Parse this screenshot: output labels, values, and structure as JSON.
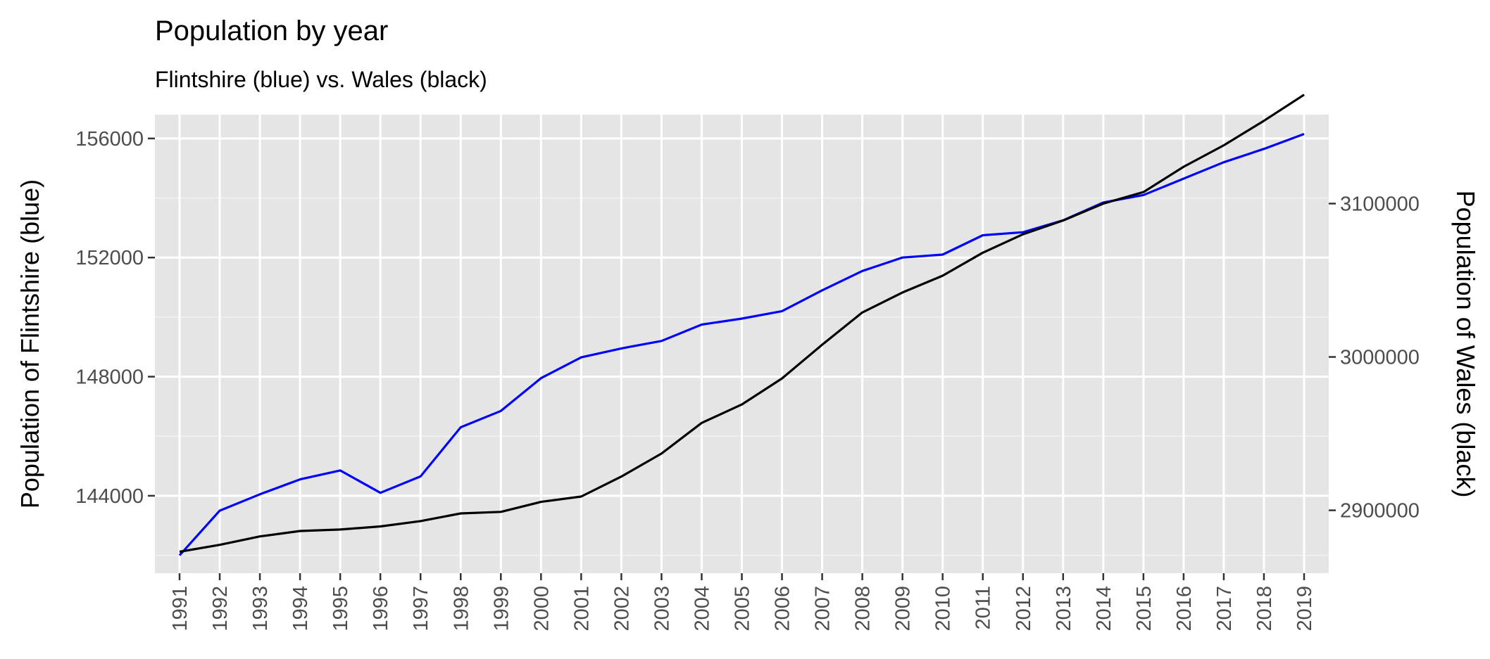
{
  "chart_data": {
    "type": "line",
    "title": "Population by year",
    "subtitle": "Flintshire (blue) vs. Wales (black)",
    "ylabel": "Population of Flintshire  (blue)",
    "y2label": "Population of Wales (black)",
    "x": [
      1991,
      1992,
      1993,
      1994,
      1995,
      1996,
      1997,
      1998,
      1999,
      2000,
      2001,
      2002,
      2003,
      2004,
      2005,
      2006,
      2007,
      2008,
      2009,
      2010,
      2011,
      2012,
      2013,
      2014,
      2015,
      2016,
      2017,
      2018,
      2019
    ],
    "x_tick_labels": [
      "1991",
      "1992",
      "1993",
      "1994",
      "1995",
      "1996",
      "1997",
      "1998",
      "1999",
      "2000",
      "2001",
      "2002",
      "2003",
      "2004",
      "2005",
      "2006",
      "2007",
      "2008",
      "2009",
      "2010",
      "2011",
      "2012",
      "2013",
      "2014",
      "2015",
      "2016",
      "2017",
      "2018",
      "2019"
    ],
    "ylim": [
      141400,
      156800
    ],
    "y_ticks": [
      144000,
      148000,
      152000,
      156000
    ],
    "y_tick_labels": [
      "144000",
      "148000",
      "152000",
      "156000"
    ],
    "y2lim": [
      2859000,
      3158000
    ],
    "y2_ticks": [
      2900000,
      3000000,
      3100000
    ],
    "y2_tick_labels": [
      "2900000",
      "3000000",
      "3100000"
    ],
    "grid": true,
    "series": [
      {
        "name": "Flintshire (blue)",
        "axis": "left",
        "color": "#0000ff",
        "values": [
          142000,
          143500,
          144050,
          144550,
          144850,
          144100,
          144650,
          146300,
          146850,
          147950,
          148650,
          148950,
          149200,
          149750,
          149950,
          150200,
          150900,
          151550,
          152000,
          152100,
          152750,
          152850,
          153250,
          153850,
          154100,
          154650,
          155200,
          155650,
          156150
        ]
      },
      {
        "name": "Wales (black)",
        "axis": "right",
        "color": "#000000",
        "values": [
          2873000,
          2877500,
          2883000,
          2886500,
          2887500,
          2889500,
          2893000,
          2898000,
          2899000,
          2905500,
          2909000,
          2922000,
          2937000,
          2957000,
          2969000,
          2986000,
          3008000,
          3029000,
          3042000,
          3053000,
          3068000,
          3080000,
          3089000,
          3100000,
          3107500,
          3124000,
          3138000,
          3154000,
          3171000
        ]
      }
    ]
  }
}
